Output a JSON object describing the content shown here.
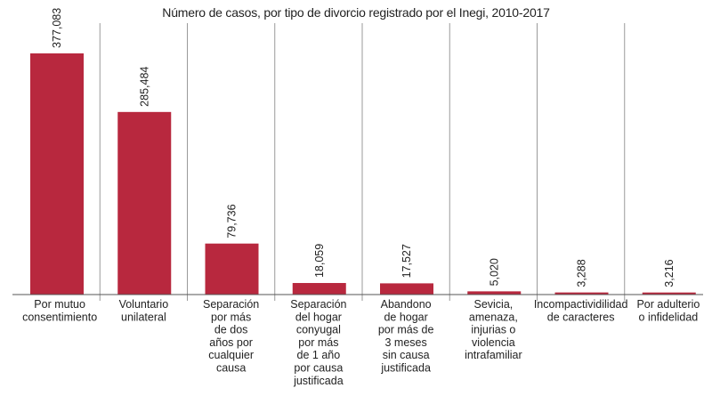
{
  "chart_data": {
    "type": "bar",
    "title": "Número de casos, por tipo de divorcio registrado por el Inegi, 2010-2017",
    "xlabel": "",
    "ylabel": "",
    "ylim": [
      0,
      400000
    ],
    "grid": false,
    "bar_color": "#b8283e",
    "categories": [
      "Por mutuo consentimiento",
      "Voluntario unilateral",
      "Separación por más de dos años por cualquier causa",
      "Separación del hogar conyugal por más de 1 año por causa justificada",
      "Abandono de hogar por más de 3 meses sin causa justificada",
      "Sevicia, amenaza, injurias o violencia intrafamiliar",
      "Incompactividilidad de caracteres",
      "Por adulterio o infidelidad"
    ],
    "category_lines": [
      [
        "Por mutuo",
        "consentimiento"
      ],
      [
        "Voluntario",
        "unilateral"
      ],
      [
        "Separación",
        "por más",
        "de dos",
        "años por",
        "cualquier",
        "causa"
      ],
      [
        "Separación",
        "del hogar",
        "conyugal",
        "por más",
        "de 1 año",
        "por causa",
        "justificada"
      ],
      [
        "Abandono",
        "de hogar",
        "por más de",
        "3 meses",
        "sin causa",
        "justificada"
      ],
      [
        "Sevicia,",
        "amenaza,",
        "injurias o",
        "violencia",
        "intrafamiliar"
      ],
      [
        "Incompactividilidad",
        "de caracteres"
      ],
      [
        "Por adulterio",
        "o infidelidad"
      ]
    ],
    "values": [
      377083,
      285484,
      79736,
      18059,
      17527,
      5020,
      3288,
      3216
    ],
    "value_labels": [
      "377,083",
      "285,484",
      "79,736",
      "18,059",
      "17,527",
      "5,020",
      "3,288",
      "3,216"
    ]
  }
}
